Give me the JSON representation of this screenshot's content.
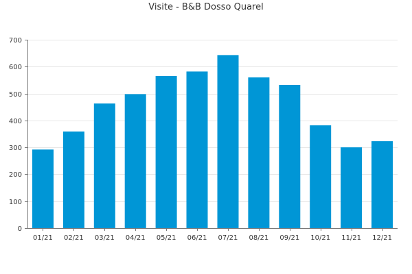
{
  "chart_data": {
    "type": "bar",
    "title": "Visite - B&B Dosso Quarel",
    "xlabel": "",
    "ylabel": "",
    "categories": [
      "01/21",
      "02/21",
      "03/21",
      "04/21",
      "05/21",
      "06/21",
      "07/21",
      "08/21",
      "09/21",
      "10/21",
      "11/21",
      "12/21"
    ],
    "values": [
      292,
      359,
      463,
      498,
      565,
      582,
      643,
      560,
      532,
      382,
      300,
      323
    ],
    "ylim": [
      0,
      700
    ],
    "yticks": [
      0,
      100,
      200,
      300,
      400,
      500,
      600,
      700
    ],
    "grid": true,
    "legend": "none",
    "bar_color": "#0096d6",
    "grid_color": "#e6e6e6",
    "axis_color": "#777777"
  }
}
